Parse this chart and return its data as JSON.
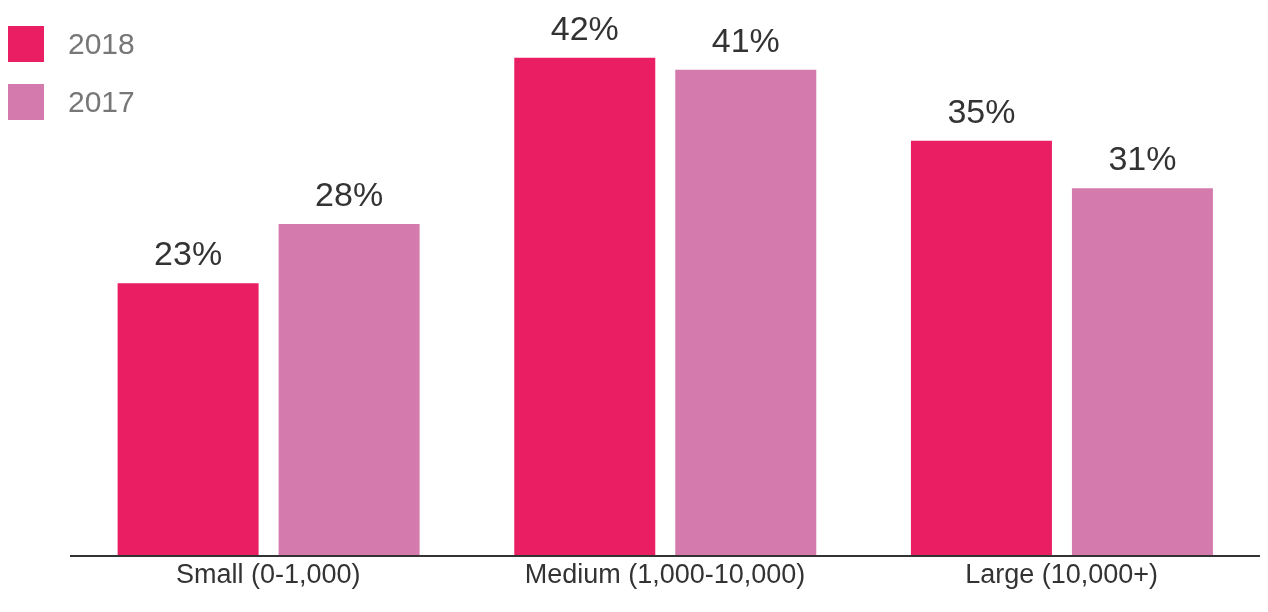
{
  "chart_data": {
    "type": "bar",
    "categories": [
      "Small (0-1,000)",
      "Medium (1,000-10,000)",
      "Large (10,000+)"
    ],
    "series": [
      {
        "name": "2018",
        "color": "#e91e63",
        "values": [
          23,
          42,
          35
        ],
        "value_labels": [
          "23%",
          "42%",
          "35%"
        ]
      },
      {
        "name": "2017",
        "color": "#d57aac",
        "values": [
          28,
          41,
          31
        ],
        "value_labels": [
          "28%",
          "41%",
          "31%"
        ]
      }
    ],
    "legend": "top left",
    "grid": false
  }
}
